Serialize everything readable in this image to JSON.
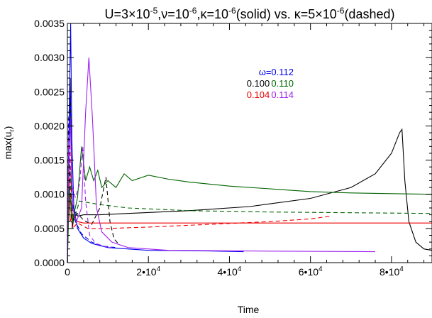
{
  "chart_data": {
    "type": "line",
    "title_parts": {
      "p1": "U=3×10",
      "e1": "-5",
      "p2": ",ν=10",
      "e2": "-6",
      "p3": ",κ=10",
      "e3": "-6",
      "p4": "(solid) vs. κ=5×10",
      "e4": "-6",
      "p5": "(dashed)"
    },
    "xlabel": "Time",
    "ylabel_parts": {
      "main": "max(u",
      "sub": "r",
      "close": ")"
    },
    "xlim": [
      0,
      90000
    ],
    "ylim": [
      0,
      0.0035
    ],
    "x_ticks": [
      {
        "value": 0,
        "mantissa": "0",
        "exp": ""
      },
      {
        "value": 20000,
        "mantissa": "2•10",
        "exp": "4"
      },
      {
        "value": 40000,
        "mantissa": "4•10",
        "exp": "4"
      },
      {
        "value": 60000,
        "mantissa": "6•10",
        "exp": "4"
      },
      {
        "value": 80000,
        "mantissa": "8•10",
        "exp": "4"
      }
    ],
    "y_ticks": [
      {
        "value": 0.0,
        "label": "0.0000"
      },
      {
        "value": 0.0005,
        "label": "0.0005"
      },
      {
        "value": 0.001,
        "label": "0.0010"
      },
      {
        "value": 0.0015,
        "label": "0.0015"
      },
      {
        "value": 0.002,
        "label": "0.0020"
      },
      {
        "value": 0.0025,
        "label": "0.0025"
      },
      {
        "value": 0.003,
        "label": "0.0030"
      },
      {
        "value": 0.0035,
        "label": "0.0035"
      }
    ],
    "legend_annotations": [
      {
        "text": "ω=0.112",
        "color": "#0000ee"
      },
      {
        "text": "0.100",
        "color": "#000000"
      },
      {
        "text": "0.110",
        "color": "#006400"
      },
      {
        "text": "0.104",
        "color": "#ee0000"
      },
      {
        "text": "0.114",
        "color": "#a020f0"
      }
    ],
    "series": [
      {
        "omega": "0.100",
        "style": "solid",
        "color": "#000000",
        "points": [
          [
            0,
            0
          ],
          [
            300,
            0.0012
          ],
          [
            700,
            0.0027
          ],
          [
            1200,
            0.0005
          ],
          [
            1800,
            0.00075
          ],
          [
            2600,
            0.00068
          ],
          [
            4000,
            0.0007
          ],
          [
            8000,
            0.0007
          ],
          [
            15000,
            0.00072
          ],
          [
            30000,
            0.00076
          ],
          [
            45000,
            0.00082
          ],
          [
            60000,
            0.00094
          ],
          [
            70000,
            0.0011
          ],
          [
            76000,
            0.0013
          ],
          [
            80000,
            0.0016
          ],
          [
            82000,
            0.0019
          ],
          [
            82600,
            0.00195
          ],
          [
            83300,
            0.0012
          ],
          [
            84300,
            0.0006
          ],
          [
            86000,
            0.0003
          ],
          [
            88000,
            0.0002
          ],
          [
            90000,
            0.00018
          ]
        ]
      },
      {
        "omega": "0.100",
        "style": "dashed",
        "color": "#000000",
        "points": [
          [
            0,
            0
          ],
          [
            400,
            0.0016
          ],
          [
            1000,
            0.0006
          ],
          [
            2500,
            0.00072
          ],
          [
            4000,
            0.00062
          ],
          [
            6000,
            0.00056
          ],
          [
            8000,
            0.0008
          ],
          [
            9500,
            0.00125
          ],
          [
            10500,
            0.0006
          ],
          [
            11500,
            0.00035
          ],
          [
            12500,
            0.00028
          ]
        ]
      },
      {
        "omega": "0.104",
        "style": "solid",
        "color": "#ee0000",
        "points": [
          [
            0,
            0
          ],
          [
            300,
            0.0016
          ],
          [
            700,
            0.0006
          ],
          [
            1300,
            0.0007
          ],
          [
            2500,
            0.0006
          ],
          [
            4000,
            0.00058
          ],
          [
            10000,
            0.00058
          ],
          [
            40000,
            0.00058
          ],
          [
            70000,
            0.00058
          ],
          [
            90000,
            0.00058
          ]
        ]
      },
      {
        "omega": "0.104",
        "style": "dashed",
        "color": "#ee0000",
        "points": [
          [
            0,
            0
          ],
          [
            500,
            0.0019
          ],
          [
            1200,
            0.0005
          ],
          [
            2500,
            0.00058
          ],
          [
            5000,
            0.0005
          ],
          [
            10000,
            0.0005
          ],
          [
            20000,
            0.00052
          ],
          [
            35000,
            0.00056
          ],
          [
            50000,
            0.0006
          ],
          [
            60000,
            0.00064
          ],
          [
            65000,
            0.00068
          ]
        ]
      },
      {
        "omega": "0.110",
        "style": "solid",
        "color": "#006400",
        "points": [
          [
            0,
            0
          ],
          [
            500,
            0.0011
          ],
          [
            1200,
            0.0006
          ],
          [
            2500,
            0.00095
          ],
          [
            3500,
            0.0017
          ],
          [
            4500,
            0.0012
          ],
          [
            5500,
            0.0014
          ],
          [
            6500,
            0.0012
          ],
          [
            7500,
            0.00135
          ],
          [
            8500,
            0.0011
          ],
          [
            10000,
            0.0012
          ],
          [
            12000,
            0.0011
          ],
          [
            14000,
            0.0013
          ],
          [
            16000,
            0.0012
          ],
          [
            20000,
            0.00128
          ],
          [
            25000,
            0.00122
          ],
          [
            30000,
            0.00118
          ],
          [
            40000,
            0.00112
          ],
          [
            50000,
            0.00108
          ],
          [
            60000,
            0.00104
          ],
          [
            70000,
            0.00102
          ],
          [
            80000,
            0.00101
          ],
          [
            90000,
            0.001
          ]
        ]
      },
      {
        "omega": "0.110",
        "style": "dashed",
        "color": "#006400",
        "points": [
          [
            0,
            0
          ],
          [
            500,
            0.0015
          ],
          [
            1500,
            0.0006
          ],
          [
            3000,
            0.0009
          ],
          [
            5000,
            0.00088
          ],
          [
            8000,
            0.00085
          ],
          [
            15000,
            0.0008
          ],
          [
            30000,
            0.00076
          ],
          [
            50000,
            0.00074
          ],
          [
            70000,
            0.00073
          ],
          [
            90000,
            0.00072
          ]
        ]
      },
      {
        "omega": "0.112",
        "style": "solid",
        "color": "#0000ee",
        "points": [
          [
            0,
            0
          ],
          [
            200,
            0.0012
          ],
          [
            500,
            0.0024
          ],
          [
            800,
            0.0035
          ],
          [
            1100,
            0.0018
          ],
          [
            1600,
            0.0008
          ],
          [
            2500,
            0.0005
          ],
          [
            4000,
            0.00036
          ],
          [
            6000,
            0.00028
          ],
          [
            10000,
            0.00022
          ],
          [
            20000,
            0.00018
          ],
          [
            35000,
            0.00017
          ],
          [
            43500,
            0.00016
          ]
        ]
      },
      {
        "omega": "0.112",
        "style": "dashed",
        "color": "#0000ee",
        "points": [
          [
            0,
            0
          ],
          [
            300,
            0.0021
          ],
          [
            700,
            0.0025
          ],
          [
            1200,
            0.0009
          ],
          [
            2000,
            0.0006
          ],
          [
            3500,
            0.00042
          ],
          [
            6000,
            0.0003
          ],
          [
            9000,
            0.00024
          ],
          [
            12000,
            0.00022
          ]
        ]
      },
      {
        "omega": "0.114",
        "style": "solid",
        "color": "#a020f0",
        "points": [
          [
            0,
            0
          ],
          [
            300,
            0.0014
          ],
          [
            700,
            0.0021
          ],
          [
            1300,
            0.0008
          ],
          [
            2200,
            0.0006
          ],
          [
            3500,
            0.0008
          ],
          [
            4500,
            0.0022
          ],
          [
            5300,
            0.003
          ],
          [
            6200,
            0.0021
          ],
          [
            7200,
            0.0008
          ],
          [
            8500,
            0.00045
          ],
          [
            11000,
            0.0003
          ],
          [
            15000,
            0.00022
          ],
          [
            25000,
            0.00018
          ],
          [
            45000,
            0.00017
          ],
          [
            76000,
            0.00016
          ]
        ]
      },
      {
        "omega": "0.114",
        "style": "dashed",
        "color": "#a020f0",
        "points": [
          [
            0,
            0
          ],
          [
            300,
            0.0018
          ],
          [
            700,
            0.0014
          ],
          [
            1200,
            0.0011
          ],
          [
            2000,
            0.00095
          ],
          [
            3000,
            0.00115
          ],
          [
            3800,
            0.0017
          ],
          [
            4500,
            0.0009
          ],
          [
            5500,
            0.0004
          ],
          [
            7000,
            0.00028
          ],
          [
            9000,
            0.00024
          ],
          [
            11000,
            0.00022
          ]
        ]
      }
    ]
  }
}
